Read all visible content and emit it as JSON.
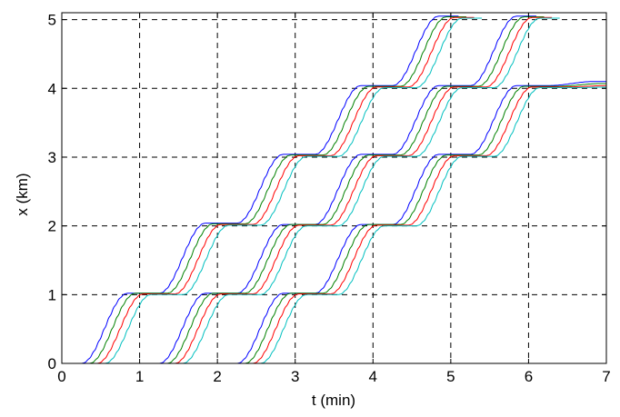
{
  "chart_data": {
    "type": "line",
    "xlabel": "t (min)",
    "ylabel": "x (km)",
    "xlim": [
      0,
      7
    ],
    "ylim": [
      0,
      5.1
    ],
    "xticks": [
      "0",
      "1",
      "2",
      "3",
      "4",
      "5",
      "6",
      "7"
    ],
    "yticks": [
      "0",
      "1",
      "2",
      "3",
      "4",
      "5"
    ],
    "grid": "dashed",
    "series": [
      {
        "color": "#0000ff",
        "trips": [
          {
            "start": 0.25,
            "from": 0,
            "to": 1.02
          },
          {
            "start": 1.25,
            "from": 1.02,
            "to": 2.04
          },
          {
            "start": 2.25,
            "from": 2.04,
            "to": 3.04
          },
          {
            "start": 3.25,
            "from": 3.04,
            "to": 4.04
          },
          {
            "start": 4.25,
            "from": 4.04,
            "to": 5.05
          },
          {
            "start": 1.25,
            "from": 0,
            "to": 1.02
          },
          {
            "start": 2.25,
            "from": 1.02,
            "to": 2.02
          },
          {
            "start": 3.25,
            "from": 2.02,
            "to": 3.04
          },
          {
            "start": 4.25,
            "from": 3.04,
            "to": 4.04
          },
          {
            "start": 5.25,
            "from": 4.04,
            "to": 5.05
          },
          {
            "start": 2.25,
            "from": 0,
            "to": 1.02
          },
          {
            "start": 3.25,
            "from": 1.02,
            "to": 2.02
          },
          {
            "start": 4.25,
            "from": 2.02,
            "to": 3.04
          },
          {
            "start": 5.25,
            "from": 3.04,
            "to": 4.04
          },
          {
            "start": 6.25,
            "from": 4.04,
            "to": 4.1
          }
        ]
      },
      {
        "color": "#008000",
        "trips": [
          {
            "start": 0.35,
            "from": 0,
            "to": 1.02
          },
          {
            "start": 1.35,
            "from": 1.02,
            "to": 2.03
          },
          {
            "start": 2.35,
            "from": 2.03,
            "to": 3.03
          },
          {
            "start": 3.35,
            "from": 3.03,
            "to": 4.03
          },
          {
            "start": 4.35,
            "from": 4.03,
            "to": 5.04
          },
          {
            "start": 1.35,
            "from": 0,
            "to": 1.02
          },
          {
            "start": 2.35,
            "from": 1.02,
            "to": 2.02
          },
          {
            "start": 3.35,
            "from": 2.02,
            "to": 3.03
          },
          {
            "start": 4.35,
            "from": 3.03,
            "to": 4.03
          },
          {
            "start": 5.35,
            "from": 4.03,
            "to": 5.04
          },
          {
            "start": 2.35,
            "from": 0,
            "to": 1.02
          },
          {
            "start": 3.35,
            "from": 1.02,
            "to": 2.02
          },
          {
            "start": 4.35,
            "from": 2.02,
            "to": 3.03
          },
          {
            "start": 5.35,
            "from": 3.03,
            "to": 4.03
          },
          {
            "start": 6.35,
            "from": 4.03,
            "to": 4.07
          }
        ]
      },
      {
        "color": "#ff0000",
        "trips": [
          {
            "start": 0.45,
            "from": 0,
            "to": 1.01
          },
          {
            "start": 1.45,
            "from": 1.01,
            "to": 2.02
          },
          {
            "start": 2.45,
            "from": 2.02,
            "to": 3.02
          },
          {
            "start": 3.45,
            "from": 3.02,
            "to": 4.02
          },
          {
            "start": 4.45,
            "from": 4.02,
            "to": 5.03
          },
          {
            "start": 1.45,
            "from": 0,
            "to": 1.01
          },
          {
            "start": 2.45,
            "from": 1.01,
            "to": 2.01
          },
          {
            "start": 3.45,
            "from": 2.01,
            "to": 3.02
          },
          {
            "start": 4.45,
            "from": 3.02,
            "to": 4.02
          },
          {
            "start": 5.45,
            "from": 4.02,
            "to": 5.03
          },
          {
            "start": 2.45,
            "from": 0,
            "to": 1.01
          },
          {
            "start": 3.45,
            "from": 1.01,
            "to": 2.01
          },
          {
            "start": 4.45,
            "from": 2.01,
            "to": 3.02
          },
          {
            "start": 5.45,
            "from": 3.02,
            "to": 4.02
          },
          {
            "start": 6.45,
            "from": 4.02,
            "to": 4.04
          }
        ]
      },
      {
        "color": "#00bfbf",
        "trips": [
          {
            "start": 0.55,
            "from": 0,
            "to": 1.0
          },
          {
            "start": 1.55,
            "from": 1.0,
            "to": 2.01
          },
          {
            "start": 2.55,
            "from": 2.01,
            "to": 3.01
          },
          {
            "start": 3.55,
            "from": 3.01,
            "to": 4.01
          },
          {
            "start": 4.55,
            "from": 4.01,
            "to": 5.02
          },
          {
            "start": 1.55,
            "from": 0,
            "to": 1.0
          },
          {
            "start": 2.55,
            "from": 1.0,
            "to": 2.0
          },
          {
            "start": 3.55,
            "from": 2.0,
            "to": 3.01
          },
          {
            "start": 4.55,
            "from": 3.01,
            "to": 4.01
          },
          {
            "start": 5.55,
            "from": 4.01,
            "to": 5.02
          },
          {
            "start": 2.55,
            "from": 0,
            "to": 1.0
          },
          {
            "start": 3.55,
            "from": 1.0,
            "to": 2.0
          },
          {
            "start": 4.55,
            "from": 2.0,
            "to": 3.01
          },
          {
            "start": 5.55,
            "from": 3.01,
            "to": 4.01
          },
          {
            "start": 6.55,
            "from": 4.01,
            "to": 4.02
          }
        ]
      }
    ],
    "trip_duration_min": 0.6
  }
}
